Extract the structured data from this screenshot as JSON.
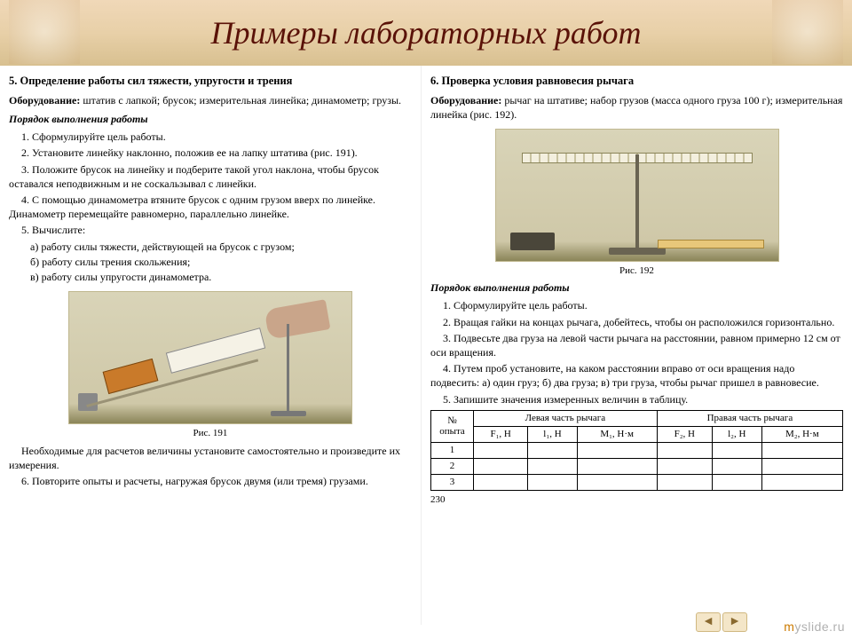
{
  "title": "Примеры лабораторных работ",
  "colors": {
    "title_color": "#5a1208",
    "header_gradient": [
      "#f0d8b8",
      "#e8d0a8",
      "#d8c090"
    ],
    "text_color": "#000000",
    "figure_bg_top": "#d9d4b8",
    "figure_bg_bottom": "#8a8458",
    "block_color": "#c97a2a",
    "lever_tick": "#c8c2a0",
    "watermark_color": "#b0b0b0",
    "watermark_accent": "#cc7a00"
  },
  "typography": {
    "title_fontsize": 36,
    "body_fontsize": 12,
    "caption_fontsize": 11,
    "table_fontsize": 11,
    "font_family": "Times New Roman"
  },
  "left": {
    "lab_title": "5. Определение работы сил тяжести, упругости и трения",
    "equipment_label": "Оборудование:",
    "equipment_text": "штатив с лапкой; брусок; измерительная линейка; динамометр; грузы.",
    "procedure_heading": "Порядок выполнения работы",
    "steps": [
      "1. Сформулируйте цель работы.",
      "2. Установите линейку наклонно, положив ее на лапку штатива (рис. 191).",
      "3. Положите брусок на линейку и подберите такой угол наклона, чтобы брусок оставался неподвижным и не соскальзывал с линейки.",
      "4. С помощью динамометра втяните брусок с одним грузом вверх по линейке. Динамометр перемещайте равномерно, параллельно линейке.",
      "5. Вычислите:"
    ],
    "substeps": [
      "а) работу силы тяжести, действующей на брусок с грузом;",
      "б) работу силы трения скольжения;",
      "в) работу силы упругости динамометра."
    ],
    "figure_caption": "Рис. 191",
    "after_fig": "Необходимые для расчетов величины установите самостоятельно и произведите их измерения.",
    "step6": "6. Повторите опыты и расчеты, нагружая брусок двумя (или тремя) грузами."
  },
  "right": {
    "lab_title": "6. Проверка условия равновесия рычага",
    "equipment_label": "Оборудование:",
    "equipment_text": "рычаг на штативе; набор грузов (масса одного груза 100 г); измерительная линейка (рис. 192).",
    "figure_caption": "Рис. 192",
    "procedure_heading": "Порядок выполнения работы",
    "steps": [
      "1. Сформулируйте цель работы.",
      "2. Вращая гайки на концах рычага, добейтесь, чтобы он расположился горизонтально.",
      "3. Подвесьте два груза на левой части рычага на расстоянии, равном примерно 12 см от оси вращения.",
      "4. Путем проб установите, на каком расстоянии вправо от оси вращения надо подвесить: а) один груз; б) два груза; в) три груза, чтобы рычаг пришел в равновесие.",
      "5. Запишите значения измеренных величин в таблицу."
    ],
    "table": {
      "col_rownum": "№ опыта",
      "col_group_left": "Левая часть рычага",
      "col_group_right": "Правая часть рычага",
      "sub_cols_left": [
        "F₁, Н",
        "l₁, Н",
        "M₁, Н·м"
      ],
      "sub_cols_right": [
        "F₂, Н",
        "l₂, Н",
        "M₂, Н·м"
      ],
      "rows": [
        "1",
        "2",
        "3"
      ]
    },
    "page_number": "230"
  },
  "watermark": {
    "text_plain": "yslide.ru",
    "text_accent": "m"
  },
  "nav": {
    "prev": "◄",
    "next": "►"
  }
}
